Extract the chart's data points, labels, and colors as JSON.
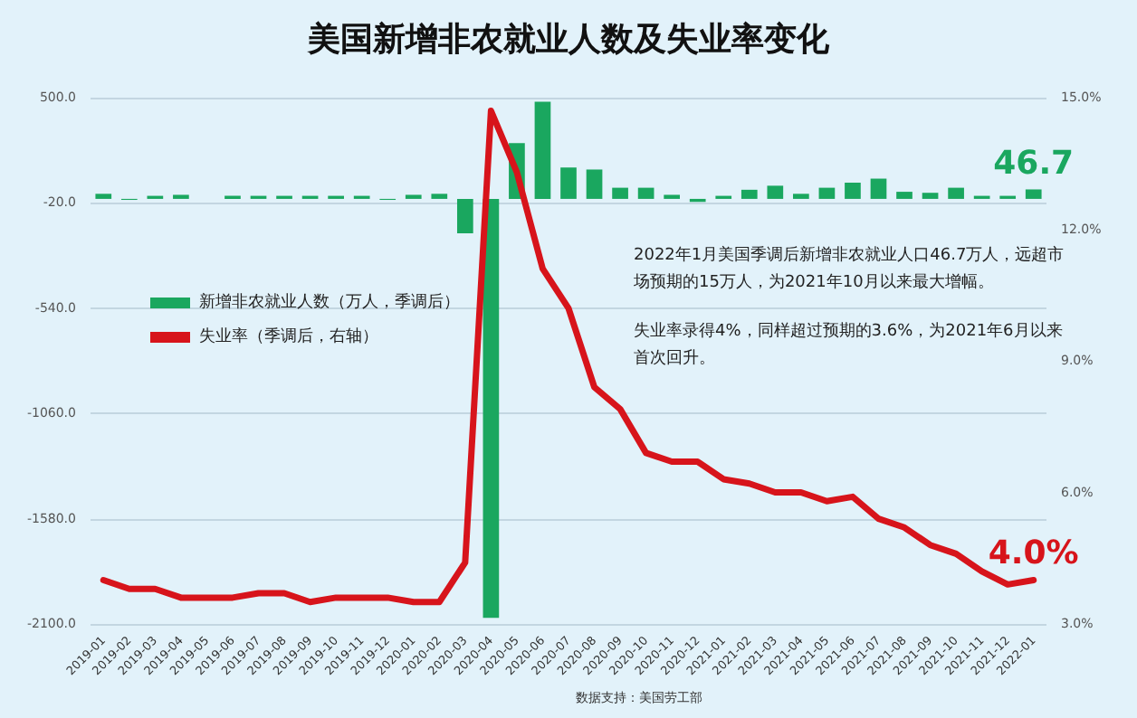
{
  "chart_data": {
    "type": "bar",
    "title": "美国新增非农就业人数及失业率变化",
    "categories": [
      "2019-01",
      "2019-02",
      "2019-03",
      "2019-04",
      "2019-05",
      "2019-06",
      "2019-07",
      "2019-08",
      "2019-09",
      "2019-10",
      "2019-11",
      "2019-12",
      "2020-01",
      "2020-02",
      "2020-03",
      "2020-04",
      "2020-05",
      "2020-06",
      "2020-07",
      "2020-08",
      "2020-09",
      "2020-10",
      "2020-11",
      "2020-12",
      "2021-01",
      "2021-02",
      "2021-03",
      "2021-04",
      "2021-05",
      "2021-06",
      "2021-07",
      "2021-08",
      "2021-09",
      "2021-10",
      "2021-11",
      "2021-12",
      "2022-01"
    ],
    "series": [
      {
        "name": "新增非农就业人数（万人，季调后）",
        "color": "#1aa75f",
        "values": [
          25,
          -5,
          15,
          20,
          0,
          15,
          15,
          15,
          15,
          15,
          15,
          -5,
          20,
          25,
          -170,
          -2070,
          275,
          480,
          155,
          145,
          55,
          55,
          20,
          -15,
          15,
          45,
          65,
          25,
          55,
          80,
          100,
          35,
          30,
          55,
          15,
          15,
          46.7
        ],
        "value_labels": [
          null,
          null,
          null,
          null,
          null,
          null,
          null,
          null,
          null,
          null,
          null,
          null,
          null,
          null,
          null,
          null,
          null,
          null,
          null,
          null,
          null,
          null,
          null,
          null,
          null,
          null,
          null,
          null,
          null,
          null,
          null,
          null,
          null,
          null,
          null,
          null,
          "46.7"
        ]
      },
      {
        "name": "失业率（季调后，右轴）",
        "type": "line",
        "axis": "y2",
        "color": "#d7141b",
        "values": [
          4.0,
          3.8,
          3.8,
          3.6,
          3.6,
          3.6,
          3.7,
          3.7,
          3.5,
          3.6,
          3.6,
          3.6,
          3.5,
          3.5,
          4.4,
          14.7,
          13.3,
          11.1,
          10.2,
          8.4,
          7.9,
          6.9,
          6.7,
          6.7,
          6.3,
          6.2,
          6.0,
          6.0,
          5.8,
          5.9,
          5.4,
          5.2,
          4.8,
          4.6,
          4.2,
          3.9,
          4.0
        ],
        "value_labels": [
          null,
          null,
          null,
          null,
          null,
          null,
          null,
          null,
          null,
          null,
          null,
          null,
          null,
          null,
          null,
          null,
          null,
          null,
          null,
          null,
          null,
          null,
          null,
          null,
          null,
          null,
          null,
          null,
          null,
          null,
          null,
          null,
          null,
          null,
          null,
          null,
          "4.0%"
        ]
      }
    ],
    "ylim": [
      -2100,
      500
    ],
    "yticks": [
      {
        "value": -2100,
        "label": "-2100.0"
      },
      {
        "value": -1580,
        "label": "-1580.0"
      },
      {
        "value": -1060,
        "label": "-1060.0"
      },
      {
        "value": -540,
        "label": "-540.0"
      },
      {
        "value": -20,
        "label": "-20.0"
      },
      {
        "value": 500,
        "label": "500.0"
      }
    ],
    "y2lim": [
      3,
      15
    ],
    "y2ticks": [
      {
        "value": 3,
        "label": "3.0%"
      },
      {
        "value": 6,
        "label": "6.0%"
      },
      {
        "value": 9,
        "label": "9.0%"
      },
      {
        "value": 12,
        "label": "12.0%"
      },
      {
        "value": 15,
        "label": "15.0%"
      }
    ],
    "grid": "y",
    "legend": "left",
    "marker": "none",
    "line_style": "solid",
    "annotations": [
      "2022年1月美国季调后新增非农就业人口46.7万人，远超市场预期的15万人，为2021年10月以来最大增幅。",
      "失业率录得4%，同样超过预期的3.6%，为2021年6月以来首次回升。",
      "数据支持：美国劳工部"
    ]
  }
}
